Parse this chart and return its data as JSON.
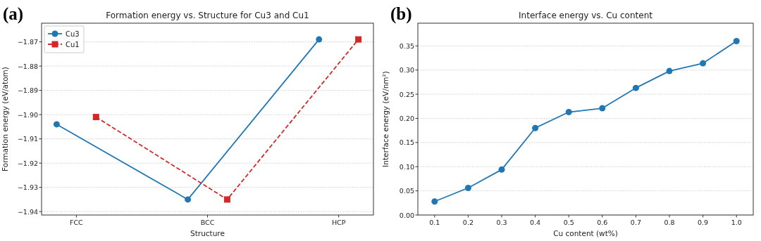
{
  "chart_data": [
    {
      "type": "line",
      "title": "Formation energy vs. Structure for Cu3 and Cu1",
      "xlabel": "Structure",
      "ylabel": "Formation energy (eV/atom)",
      "annotations": [
        "(a)"
      ],
      "categories": [
        "FCC",
        "BCC",
        "HCP"
      ],
      "ylim": [
        -1.9414,
        -1.8623
      ],
      "yticks": [
        {
          "value": -1.94,
          "label": "−1.94"
        },
        {
          "value": -1.93,
          "label": "−1.93"
        },
        {
          "value": -1.92,
          "label": "−1.92"
        },
        {
          "value": -1.91,
          "label": "−1.91"
        },
        {
          "value": -1.9,
          "label": "−1.90"
        },
        {
          "value": -1.89,
          "label": "−1.89"
        },
        {
          "value": -1.88,
          "label": "−1.88"
        },
        {
          "value": -1.87,
          "label": "−1.87"
        }
      ],
      "grid": "y",
      "legend": "top left",
      "series": [
        {
          "name": "Cu3",
          "color": "#1f77b4",
          "marker": "circle",
          "line_style": "solid",
          "values": [
            -1.904,
            -1.935,
            -1.869
          ]
        },
        {
          "name": "Cu1",
          "color": "#d62728",
          "marker": "square",
          "line_style": "dashed",
          "values": [
            -1.901,
            -1.935,
            -1.869
          ]
        }
      ]
    },
    {
      "type": "line",
      "title": "Interface energy vs. Cu content",
      "xlabel": "Cu content (wt%)",
      "ylabel": "Interface energy (eV/nm²)",
      "annotations": [
        "(b)"
      ],
      "xlim": [
        0.05,
        1.05
      ],
      "xticks": [
        {
          "value": 0.1,
          "label": "0.1"
        },
        {
          "value": 0.2,
          "label": "0.2"
        },
        {
          "value": 0.3,
          "label": "0.3"
        },
        {
          "value": 0.4,
          "label": "0.4"
        },
        {
          "value": 0.5,
          "label": "0.5"
        },
        {
          "value": 0.6,
          "label": "0.6"
        },
        {
          "value": 0.7,
          "label": "0.7"
        },
        {
          "value": 0.8,
          "label": "0.8"
        },
        {
          "value": 0.9,
          "label": "0.9"
        },
        {
          "value": 1.0,
          "label": "1.0"
        }
      ],
      "ylim": [
        0,
        0.397
      ],
      "yticks": [
        {
          "value": 0,
          "label": "0.00"
        },
        {
          "value": 0.05,
          "label": "0.05"
        },
        {
          "value": 0.1,
          "label": "0.10"
        },
        {
          "value": 0.15,
          "label": "0.15"
        },
        {
          "value": 0.2,
          "label": "0.20"
        },
        {
          "value": 0.25,
          "label": "0.25"
        },
        {
          "value": 0.3,
          "label": "0.30"
        },
        {
          "value": 0.35,
          "label": "0.35"
        }
      ],
      "grid": "y",
      "series": [
        {
          "color": "#1f77b4",
          "marker": "circle",
          "line_style": "solid",
          "x": [
            0.1,
            0.2,
            0.3,
            0.4,
            0.5,
            0.6,
            0.7,
            0.8,
            0.9,
            1.0
          ],
          "values": [
            0.028,
            0.056,
            0.094,
            0.18,
            0.213,
            0.221,
            0.263,
            0.298,
            0.314,
            0.36
          ]
        }
      ]
    }
  ]
}
